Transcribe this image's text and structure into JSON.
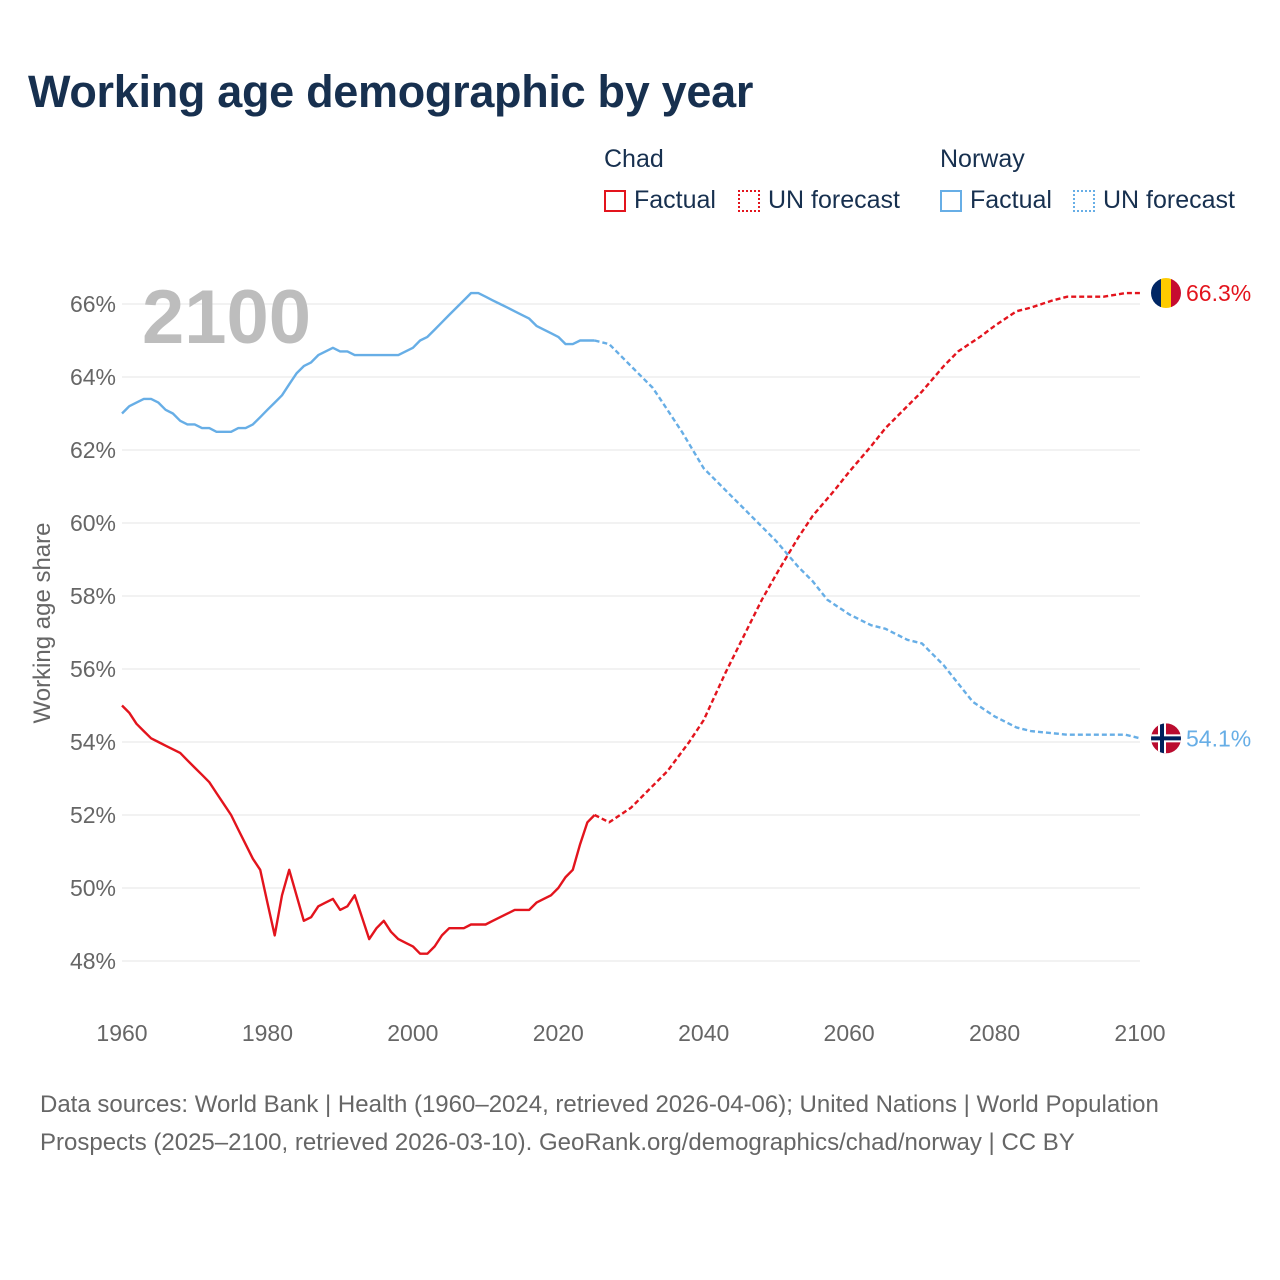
{
  "chart_data": {
    "type": "line",
    "title": "Working age demographic by year",
    "ylabel": "Working age share",
    "xlabel": "",
    "xlim": [
      1960,
      2100
    ],
    "ylim": [
      47,
      68
    ],
    "year_label": "2100",
    "x_ticks": [
      1960,
      1980,
      2000,
      2020,
      2040,
      2060,
      2080,
      2100
    ],
    "y_ticks": [
      48,
      50,
      52,
      54,
      56,
      58,
      60,
      62,
      64,
      66
    ],
    "y_tick_labels": [
      "48%",
      "50%",
      "52%",
      "54%",
      "56%",
      "58%",
      "60%",
      "62%",
      "64%",
      "66%"
    ],
    "x_tick_labels": [
      "1960",
      "1980",
      "2000",
      "2020",
      "2040",
      "2060",
      "2080",
      "2100"
    ],
    "grid": true,
    "series": [
      {
        "name": "Chad",
        "color": "#e3141d",
        "end_label": "66.3%",
        "flag": "chad-flag",
        "factual": {
          "label": "Factual",
          "x": [
            1960,
            1961,
            1962,
            1963,
            1964,
            1965,
            1966,
            1967,
            1968,
            1969,
            1970,
            1971,
            1972,
            1973,
            1974,
            1975,
            1976,
            1977,
            1978,
            1979,
            1980,
            1981,
            1982,
            1983,
            1984,
            1985,
            1986,
            1987,
            1988,
            1989,
            1990,
            1991,
            1992,
            1993,
            1994,
            1995,
            1996,
            1997,
            1998,
            1999,
            2000,
            2001,
            2002,
            2003,
            2004,
            2005,
            2006,
            2007,
            2008,
            2009,
            2010,
            2011,
            2012,
            2013,
            2014,
            2015,
            2016,
            2017,
            2018,
            2019,
            2020,
            2021,
            2022,
            2023,
            2024,
            2025
          ],
          "y": [
            55.0,
            54.8,
            54.5,
            54.3,
            54.1,
            54.0,
            53.9,
            53.8,
            53.7,
            53.5,
            53.3,
            53.1,
            52.9,
            52.6,
            52.3,
            52.0,
            51.6,
            51.2,
            50.8,
            50.5,
            49.6,
            48.7,
            49.8,
            50.5,
            49.8,
            49.1,
            49.2,
            49.5,
            49.6,
            49.7,
            49.4,
            49.5,
            49.8,
            49.2,
            48.6,
            48.9,
            49.1,
            48.8,
            48.6,
            48.5,
            48.4,
            48.2,
            48.2,
            48.4,
            48.7,
            48.9,
            48.9,
            48.9,
            49.0,
            49.0,
            49.0,
            49.1,
            49.2,
            49.3,
            49.4,
            49.4,
            49.4,
            49.6,
            49.7,
            49.8,
            50.0,
            50.3,
            50.5,
            51.2,
            51.8,
            52.0
          ]
        },
        "forecast": {
          "label": "UN forecast",
          "x": [
            2025,
            2027,
            2030,
            2033,
            2035,
            2038,
            2040,
            2043,
            2045,
            2048,
            2050,
            2053,
            2055,
            2058,
            2060,
            2063,
            2065,
            2068,
            2070,
            2073,
            2075,
            2078,
            2080,
            2083,
            2085,
            2088,
            2090,
            2095,
            2098,
            2100
          ],
          "y": [
            52.0,
            51.8,
            52.2,
            52.8,
            53.2,
            54.0,
            54.6,
            55.9,
            56.7,
            57.9,
            58.6,
            59.6,
            60.2,
            60.9,
            61.4,
            62.1,
            62.6,
            63.2,
            63.6,
            64.3,
            64.7,
            65.1,
            65.4,
            65.8,
            65.9,
            66.1,
            66.2,
            66.2,
            66.3,
            66.3
          ]
        }
      },
      {
        "name": "Norway",
        "color": "#67aee6",
        "end_label": "54.1%",
        "flag": "norway-flag",
        "factual": {
          "label": "Factual",
          "x": [
            1960,
            1961,
            1962,
            1963,
            1964,
            1965,
            1966,
            1967,
            1968,
            1969,
            1970,
            1971,
            1972,
            1973,
            1974,
            1975,
            1976,
            1977,
            1978,
            1979,
            1980,
            1981,
            1982,
            1983,
            1984,
            1985,
            1986,
            1987,
            1988,
            1989,
            1990,
            1991,
            1992,
            1993,
            1994,
            1995,
            1996,
            1997,
            1998,
            1999,
            2000,
            2001,
            2002,
            2003,
            2004,
            2005,
            2006,
            2007,
            2008,
            2009,
            2010,
            2011,
            2012,
            2013,
            2014,
            2015,
            2016,
            2017,
            2018,
            2019,
            2020,
            2021,
            2022,
            2023,
            2024,
            2025
          ],
          "y": [
            63.0,
            63.2,
            63.3,
            63.4,
            63.4,
            63.3,
            63.1,
            63.0,
            62.8,
            62.7,
            62.7,
            62.6,
            62.6,
            62.5,
            62.5,
            62.5,
            62.6,
            62.6,
            62.7,
            62.9,
            63.1,
            63.3,
            63.5,
            63.8,
            64.1,
            64.3,
            64.4,
            64.6,
            64.7,
            64.8,
            64.7,
            64.7,
            64.6,
            64.6,
            64.6,
            64.6,
            64.6,
            64.6,
            64.6,
            64.7,
            64.8,
            65.0,
            65.1,
            65.3,
            65.5,
            65.7,
            65.9,
            66.1,
            66.3,
            66.3,
            66.2,
            66.1,
            66.0,
            65.9,
            65.8,
            65.7,
            65.6,
            65.4,
            65.3,
            65.2,
            65.1,
            64.9,
            64.9,
            65.0,
            65.0,
            65.0
          ]
        },
        "forecast": {
          "label": "UN forecast",
          "x": [
            2025,
            2027,
            2030,
            2033,
            2035,
            2037,
            2040,
            2043,
            2045,
            2048,
            2050,
            2053,
            2055,
            2057,
            2060,
            2063,
            2065,
            2068,
            2070,
            2073,
            2075,
            2077,
            2080,
            2083,
            2085,
            2090,
            2095,
            2098,
            2100
          ],
          "y": [
            65.0,
            64.9,
            64.3,
            63.7,
            63.1,
            62.5,
            61.5,
            60.9,
            60.5,
            59.9,
            59.5,
            58.8,
            58.4,
            57.9,
            57.5,
            57.2,
            57.1,
            56.8,
            56.7,
            56.1,
            55.6,
            55.1,
            54.7,
            54.4,
            54.3,
            54.2,
            54.2,
            54.2,
            54.1
          ]
        }
      }
    ]
  },
  "legend": {
    "group1": "Chad",
    "group2": "Norway",
    "factual": "Factual",
    "forecast": "UN forecast"
  },
  "footer": "Data sources: World Bank | Health (1960–2024, retrieved 2026-04-06); United Nations | World Population Prospects (2025–2100, retrieved 2026-03-10). GeoRank.org/demographics/chad/norway | CC BY"
}
